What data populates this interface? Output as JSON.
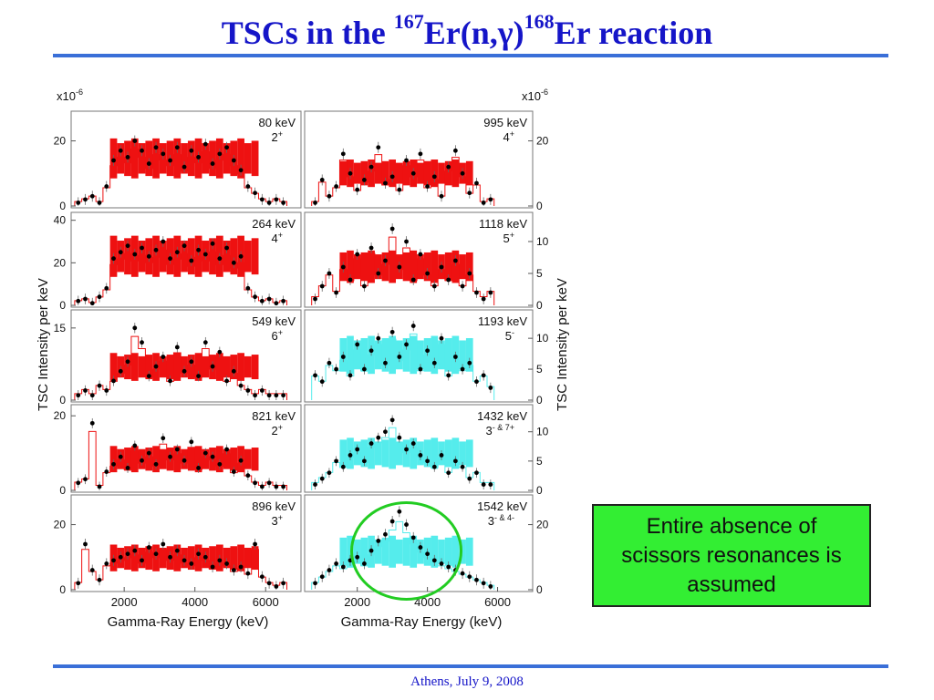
{
  "slide": {
    "title_parts": [
      "TSCs in the ",
      "167",
      "Er(n,γ)",
      "168",
      "Er reaction"
    ],
    "footer": "Athens, July 9, 2008",
    "note": "Entire absence of\nscissors resonances is\nassumed",
    "colors": {
      "title": "#1515c8",
      "rule": "#3a6fd8",
      "note_bg": "#33ee33",
      "highlight_circle": "#22cc22"
    }
  },
  "figure_text": {
    "scale_left": "x10",
    "scale_right": "x10",
    "scale_exp": "-6",
    "xlabel_left": "Gamma-Ray Energy (keV)",
    "xlabel_right": "Gamma-Ray Energy (keV)",
    "ylabel_left": "TSC Intensity per keV",
    "ylabel_right": "TSC Intensity per keV"
  },
  "chart_data": {
    "type": "scatter",
    "xlim": [
      500,
      7000
    ],
    "xticks": [
      "2000",
      "4000",
      "6000"
    ],
    "xtick_values": [
      2000,
      4000,
      6000
    ],
    "grid": false,
    "legend": "none",
    "colors": {
      "red": "#ee1111",
      "cyan": "#55ecec",
      "points": "#000000"
    },
    "panels": [
      {
        "col": "left",
        "row": 0,
        "energy": "80 keV",
        "spin": "2",
        "parity": "+",
        "band": "red",
        "ylim": [
          0,
          28
        ],
        "yticks": [
          0,
          20
        ],
        "peak": null,
        "x": [
          700,
          900,
          1100,
          1300,
          1500,
          1700,
          1900,
          2100,
          2300,
          2500,
          2700,
          2900,
          3100,
          3300,
          3500,
          3700,
          3900,
          4100,
          4300,
          4500,
          4700,
          4900,
          5100,
          5300,
          5500,
          5700,
          5900,
          6100,
          6300,
          6500
        ],
        "y": [
          1,
          2,
          3,
          1,
          6,
          14,
          17,
          15,
          20,
          17,
          13,
          18,
          16,
          14,
          18,
          12,
          17,
          15,
          19,
          13,
          16,
          18,
          14,
          11,
          6,
          4,
          2,
          1,
          2,
          1
        ]
      },
      {
        "col": "right",
        "row": 0,
        "energy": "995 keV",
        "spin": "4",
        "parity": "+",
        "band": "red",
        "ylim": [
          0,
          28
        ],
        "yticks": [
          0,
          20
        ],
        "peak": null,
        "x": [
          800,
          1000,
          1200,
          1400,
          1600,
          1800,
          2000,
          2200,
          2400,
          2600,
          2800,
          3000,
          3200,
          3400,
          3600,
          3800,
          4000,
          4200,
          4400,
          4600,
          4800,
          5000,
          5200,
          5400,
          5600,
          5800
        ],
        "y": [
          1,
          8,
          3,
          6,
          16,
          10,
          5,
          8,
          12,
          18,
          7,
          9,
          5,
          14,
          10,
          16,
          6,
          9,
          3,
          12,
          17,
          10,
          4,
          7,
          1,
          2
        ]
      },
      {
        "col": "left",
        "row": 1,
        "energy": "264 keV",
        "spin": "4",
        "parity": "+",
        "band": "red",
        "ylim": [
          0,
          42
        ],
        "yticks": [
          0,
          20,
          40
        ],
        "peak": null,
        "x": [
          700,
          900,
          1100,
          1300,
          1500,
          1700,
          1900,
          2100,
          2300,
          2500,
          2700,
          2900,
          3100,
          3300,
          3500,
          3700,
          3900,
          4100,
          4300,
          4500,
          4700,
          4900,
          5100,
          5300,
          5500,
          5700,
          5900,
          6100,
          6300,
          6500
        ],
        "y": [
          2,
          3,
          1,
          4,
          8,
          22,
          25,
          28,
          24,
          27,
          23,
          26,
          30,
          22,
          25,
          28,
          21,
          26,
          24,
          29,
          22,
          27,
          20,
          23,
          8,
          4,
          2,
          3,
          1,
          2
        ]
      },
      {
        "col": "right",
        "row": 1,
        "energy": "1118 keV",
        "spin": "5",
        "parity": "+",
        "band": "red",
        "ylim": [
          0,
          14
        ],
        "yticks": [
          0,
          5,
          10
        ],
        "peak": null,
        "x": [
          800,
          1000,
          1200,
          1400,
          1600,
          1800,
          2000,
          2200,
          2400,
          2600,
          2800,
          3000,
          3200,
          3400,
          3600,
          3800,
          4000,
          4200,
          4400,
          4600,
          4800,
          5000,
          5200,
          5400,
          5600,
          5800
        ],
        "y": [
          1,
          3,
          5,
          2,
          6,
          4,
          8,
          3,
          9,
          5,
          7,
          12,
          6,
          10,
          4,
          8,
          5,
          3,
          6,
          4,
          7,
          3,
          5,
          2,
          1,
          2
        ]
      },
      {
        "col": "left",
        "row": 2,
        "energy": "549 keV",
        "spin": "6",
        "parity": "+",
        "band": "red",
        "ylim": [
          0,
          18
        ],
        "yticks": [
          0,
          15
        ],
        "peak": null,
        "x": [
          700,
          900,
          1100,
          1300,
          1500,
          1700,
          1900,
          2100,
          2300,
          2500,
          2700,
          2900,
          3100,
          3300,
          3500,
          3700,
          3900,
          4100,
          4300,
          4500,
          4700,
          4900,
          5100,
          5300,
          5500,
          5700,
          5900,
          6100,
          6300,
          6500
        ],
        "y": [
          1,
          2,
          1,
          3,
          2,
          4,
          6,
          8,
          15,
          12,
          5,
          7,
          9,
          4,
          11,
          6,
          8,
          5,
          12,
          7,
          10,
          4,
          6,
          3,
          2,
          1,
          2,
          1,
          1,
          1
        ]
      },
      {
        "col": "right",
        "row": 2,
        "energy": "1193 keV",
        "spin": "5",
        "parity": "-",
        "band": "cyan",
        "ylim": [
          0,
          14
        ],
        "yticks": [
          0,
          5,
          10
        ],
        "peak": null,
        "x": [
          800,
          1000,
          1200,
          1400,
          1600,
          1800,
          2000,
          2200,
          2400,
          2600,
          2800,
          3000,
          3200,
          3400,
          3600,
          3800,
          4000,
          4200,
          4400,
          4600,
          4800,
          5000,
          5200,
          5400,
          5600,
          5800
        ],
        "y": [
          4,
          3,
          6,
          5,
          7,
          4,
          9,
          5,
          8,
          10,
          6,
          11,
          7,
          9,
          12,
          5,
          8,
          6,
          10,
          4,
          7,
          5,
          6,
          3,
          4,
          2
        ]
      },
      {
        "col": "left",
        "row": 3,
        "energy": "821 keV",
        "spin": "2",
        "parity": "+",
        "band": "red",
        "ylim": [
          0,
          22
        ],
        "yticks": [
          0,
          20
        ],
        "peak": null,
        "x": [
          700,
          900,
          1100,
          1300,
          1500,
          1700,
          1900,
          2100,
          2300,
          2500,
          2700,
          2900,
          3100,
          3300,
          3500,
          3700,
          3900,
          4100,
          4300,
          4500,
          4700,
          4900,
          5100,
          5300,
          5500,
          5700,
          5900,
          6100,
          6300,
          6500
        ],
        "y": [
          2,
          3,
          18,
          1,
          5,
          7,
          9,
          6,
          12,
          8,
          10,
          7,
          14,
          9,
          11,
          8,
          13,
          6,
          10,
          9,
          7,
          11,
          5,
          8,
          4,
          2,
          1,
          2,
          1,
          1
        ]
      },
      {
        "col": "right",
        "row": 3,
        "energy": "1432 keV",
        "spin": "3",
        "parity": "- & 7+",
        "band": "cyan",
        "ylim": [
          0,
          14
        ],
        "yticks": [
          0,
          5,
          10
        ],
        "peak": null,
        "x": [
          800,
          1000,
          1200,
          1400,
          1600,
          1800,
          2000,
          2200,
          2400,
          2600,
          2800,
          3000,
          3200,
          3400,
          3600,
          3800,
          4000,
          4200,
          4400,
          4600,
          4800,
          5000,
          5200,
          5400,
          5600,
          5800
        ],
        "y": [
          1,
          2,
          3,
          5,
          4,
          6,
          7,
          5,
          8,
          9,
          10,
          12,
          9,
          7,
          8,
          6,
          5,
          4,
          6,
          3,
          5,
          4,
          2,
          3,
          1,
          1
        ]
      },
      {
        "col": "left",
        "row": 4,
        "energy": "896 keV",
        "spin": "3",
        "parity": "+",
        "band": "red",
        "ylim": [
          0,
          28
        ],
        "yticks": [
          0,
          20
        ],
        "peak": null,
        "x": [
          700,
          900,
          1100,
          1300,
          1500,
          1700,
          1900,
          2100,
          2300,
          2500,
          2700,
          2900,
          3100,
          3300,
          3500,
          3700,
          3900,
          4100,
          4300,
          4500,
          4700,
          4900,
          5100,
          5300,
          5500,
          5700,
          5900,
          6100,
          6300,
          6500
        ],
        "y": [
          2,
          14,
          6,
          3,
          8,
          9,
          10,
          11,
          12,
          9,
          13,
          11,
          14,
          10,
          12,
          9,
          8,
          11,
          10,
          7,
          9,
          8,
          6,
          7,
          5,
          14,
          4,
          2,
          1,
          2
        ]
      },
      {
        "col": "right",
        "row": 4,
        "energy": "1542 keV",
        "spin": "3",
        "parity": "- & 4-",
        "band": "cyan",
        "ylim": [
          0,
          28
        ],
        "yticks": [
          0,
          20
        ],
        "peak": "circle",
        "x": [
          800,
          1000,
          1200,
          1400,
          1600,
          1800,
          2000,
          2200,
          2400,
          2600,
          2800,
          3000,
          3200,
          3400,
          3600,
          3800,
          4000,
          4200,
          4400,
          4600,
          4800,
          5000,
          5200,
          5400,
          5600,
          5800
        ],
        "y": [
          2,
          4,
          6,
          8,
          7,
          9,
          10,
          8,
          12,
          15,
          17,
          21,
          24,
          20,
          16,
          13,
          11,
          9,
          8,
          7,
          6,
          5,
          4,
          3,
          2,
          1
        ]
      }
    ]
  }
}
